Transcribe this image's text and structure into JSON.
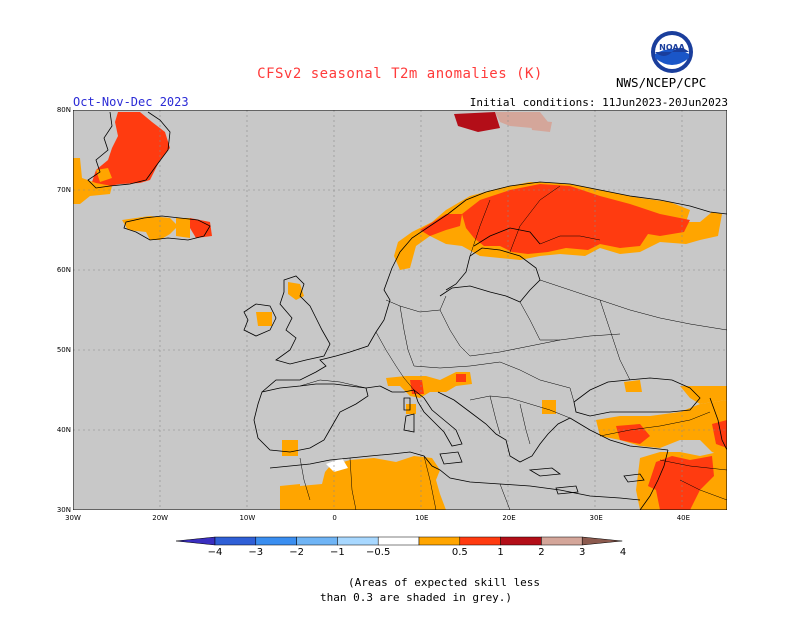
{
  "header": {
    "title": "CFSv2 seasonal T2m anomalies (K)",
    "season": "Oct-Nov-Dec 2023",
    "initial_conditions": "Initial conditions: 11Jun2023-20Jun2023",
    "organization": "NWS/NCEP/CPC",
    "logo_text": "NOAA"
  },
  "map": {
    "lat_labels": [
      "80N",
      "70N",
      "60N",
      "50N",
      "40N",
      "30N"
    ],
    "lon_labels": [
      "30W",
      "20W",
      "10W",
      "0",
      "10E",
      "20E",
      "30E",
      "40E"
    ],
    "background_grey": "#c8c8c8",
    "extent": {
      "lon_min": -30,
      "lon_max": 45,
      "lat_min": 30,
      "lat_max": 80
    }
  },
  "colorbar": {
    "labels": [
      "-4",
      "-3",
      "-2",
      "-1",
      "-0.5",
      "0.5",
      "1",
      "2",
      "3",
      "4"
    ],
    "colors": [
      "#3a2ec0",
      "#2f5fd6",
      "#3a8ef0",
      "#6fb4f5",
      "#a8d8ff",
      "#ffffff",
      "#ffa500",
      "#ff3b10",
      "#b30e18",
      "#d4a69a",
      "#8c5a4e"
    ]
  },
  "caption": {
    "line1": "(Areas of expected skill less",
    "line2": "than 0.3 are shaded in grey.)"
  }
}
